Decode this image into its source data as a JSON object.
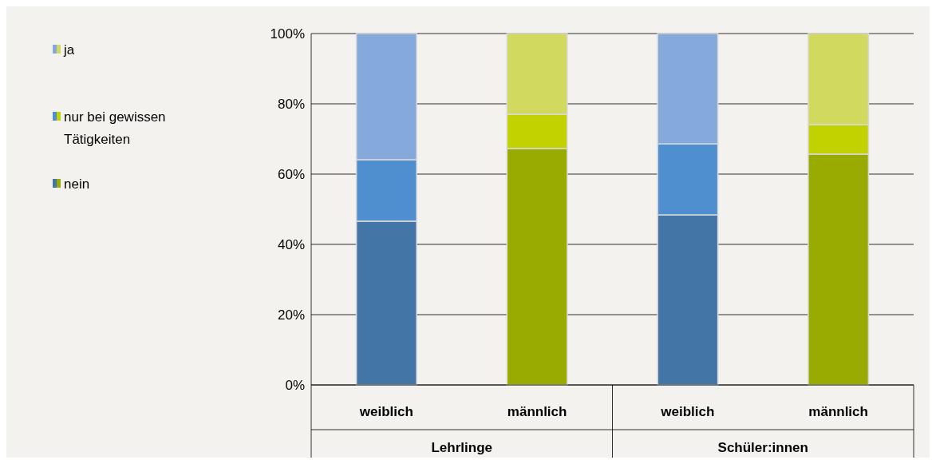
{
  "chart_data": {
    "type": "bar",
    "stacked": true,
    "categories": [
      "weiblich",
      "männlich",
      "weiblich",
      "männlich"
    ],
    "series": [
      {
        "name": "nein",
        "color": "#4375a6",
        "colors": [
          "#4375a6",
          "#99ab00",
          "#4375a6",
          "#99ab00"
        ],
        "values": [
          46.6,
          67.3,
          48.4,
          65.7
        ]
      },
      {
        "name": "nur bei gewissen Tätigkeiten",
        "color": "#4f8fcf",
        "colors": [
          "#4f8fcf",
          "#c2d100",
          "#4f8fcf",
          "#c2d100"
        ],
        "values": [
          17.5,
          9.7,
          20.2,
          8.4
        ]
      },
      {
        "name": "ja",
        "color": "#86a9dc",
        "colors": [
          "#86a9dc",
          "#d1da5f",
          "#86a9dc",
          "#d1da5f"
        ],
        "values": [
          35.9,
          23.0,
          31.4,
          25.9
        ]
      }
    ],
    "ylim": [
      0,
      100
    ],
    "yticks": [
      {
        "value": 0,
        "label": "0%"
      },
      {
        "value": 20,
        "label": "20%"
      },
      {
        "value": 40,
        "label": "40%"
      },
      {
        "value": 60,
        "label": "60%"
      },
      {
        "value": 80,
        "label": "80%"
      },
      {
        "value": 100,
        "label": "100%"
      }
    ],
    "grid": "y",
    "legend": "top left",
    "annotations": [
      "Lehrlinge",
      "Schüler:innen"
    ]
  }
}
